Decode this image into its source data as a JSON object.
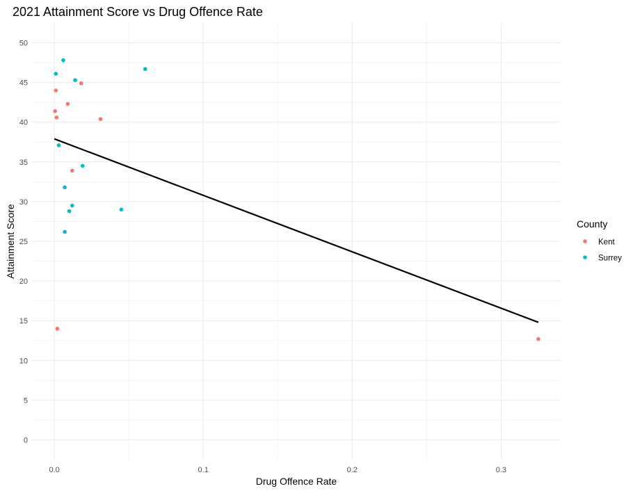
{
  "chart_data": {
    "type": "scatter",
    "title": "2021 Attainment Score vs Drug Offence Rate",
    "xlabel": "Drug Offence Rate",
    "ylabel": "Attainment Score",
    "xlim": [
      -0.015,
      0.34
    ],
    "ylim": [
      -2.5,
      52.5
    ],
    "x_ticks": [
      0.0,
      0.1,
      0.2,
      0.3
    ],
    "x_tick_labels": [
      "0.0",
      "0.1",
      "0.2",
      "0.3"
    ],
    "y_ticks": [
      0,
      5,
      10,
      15,
      20,
      25,
      30,
      35,
      40,
      45,
      50
    ],
    "y_tick_labels": [
      "0",
      "5",
      "10",
      "15",
      "20",
      "25",
      "30",
      "35",
      "40",
      "45",
      "50"
    ],
    "grid": true,
    "legend": {
      "title": "County",
      "position": "right"
    },
    "series": [
      {
        "name": "Kent",
        "color": "#F8766D",
        "points": [
          {
            "x": 0.001,
            "y": 44.0
          },
          {
            "x": 0.0005,
            "y": 41.4
          },
          {
            "x": 0.0015,
            "y": 40.6
          },
          {
            "x": 0.009,
            "y": 42.3
          },
          {
            "x": 0.018,
            "y": 44.9
          },
          {
            "x": 0.031,
            "y": 40.4
          },
          {
            "x": 0.012,
            "y": 33.9
          },
          {
            "x": 0.002,
            "y": 14.0
          },
          {
            "x": 0.325,
            "y": 12.7
          }
        ]
      },
      {
        "name": "Surrey",
        "color": "#00BFC4",
        "points": [
          {
            "x": 0.006,
            "y": 47.8
          },
          {
            "x": 0.001,
            "y": 46.1
          },
          {
            "x": 0.014,
            "y": 45.3
          },
          {
            "x": 0.061,
            "y": 46.7
          },
          {
            "x": 0.003,
            "y": 37.1
          },
          {
            "x": 0.019,
            "y": 34.5
          },
          {
            "x": 0.007,
            "y": 31.8
          },
          {
            "x": 0.012,
            "y": 29.5
          },
          {
            "x": 0.01,
            "y": 28.8
          },
          {
            "x": 0.045,
            "y": 29.0
          },
          {
            "x": 0.007,
            "y": 26.2
          }
        ]
      }
    ],
    "trend_line": {
      "color": "#000000",
      "x": [
        0.0,
        0.325
      ],
      "y": [
        37.9,
        14.8
      ]
    }
  }
}
